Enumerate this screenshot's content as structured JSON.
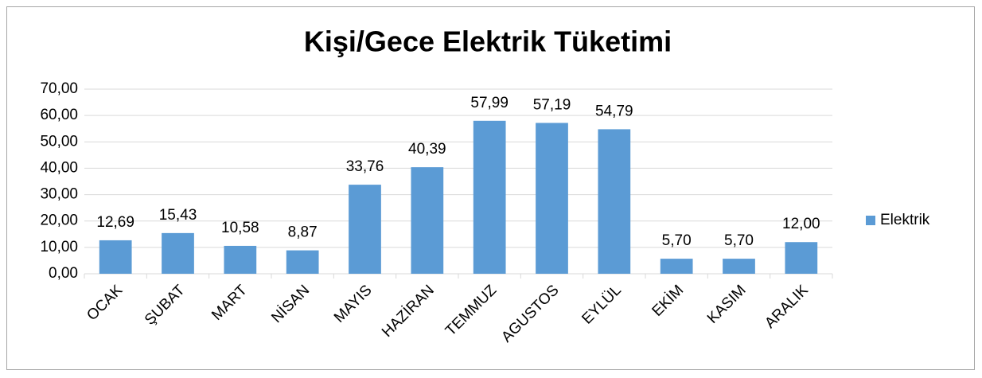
{
  "chart_data": {
    "type": "bar",
    "title": "Kişi/Gece Elektrik Tüketimi",
    "categories": [
      "OCAK",
      "ŞUBAT",
      "MART",
      "NİSAN",
      "MAYIS",
      "HAZİRAN",
      "TEMMUZ",
      "AGUSTOS",
      "EYLÜL",
      "EKİM",
      "KASIM",
      "ARALIK"
    ],
    "series": [
      {
        "name": "Elektrik",
        "color": "#5b9bd5",
        "values": [
          12.69,
          15.43,
          10.58,
          8.87,
          33.76,
          40.39,
          57.99,
          57.19,
          54.79,
          5.7,
          5.7,
          12.0
        ],
        "value_labels": [
          "12,69",
          "15,43",
          "10,58",
          "8,87",
          "33,76",
          "40,39",
          "57,99",
          "57,19",
          "54,79",
          "5,70",
          "5,70",
          "12,00"
        ]
      }
    ],
    "ylim": [
      0,
      70
    ],
    "yticks": [
      {
        "value": 0,
        "label": "0,00"
      },
      {
        "value": 10,
        "label": "10,00"
      },
      {
        "value": 20,
        "label": "20,00"
      },
      {
        "value": 30,
        "label": "30,00"
      },
      {
        "value": 40,
        "label": "40,00"
      },
      {
        "value": 50,
        "label": "50,00"
      },
      {
        "value": 60,
        "label": "60,00"
      },
      {
        "value": 70,
        "label": "70,00"
      }
    ],
    "grid": true,
    "legend": "right"
  }
}
